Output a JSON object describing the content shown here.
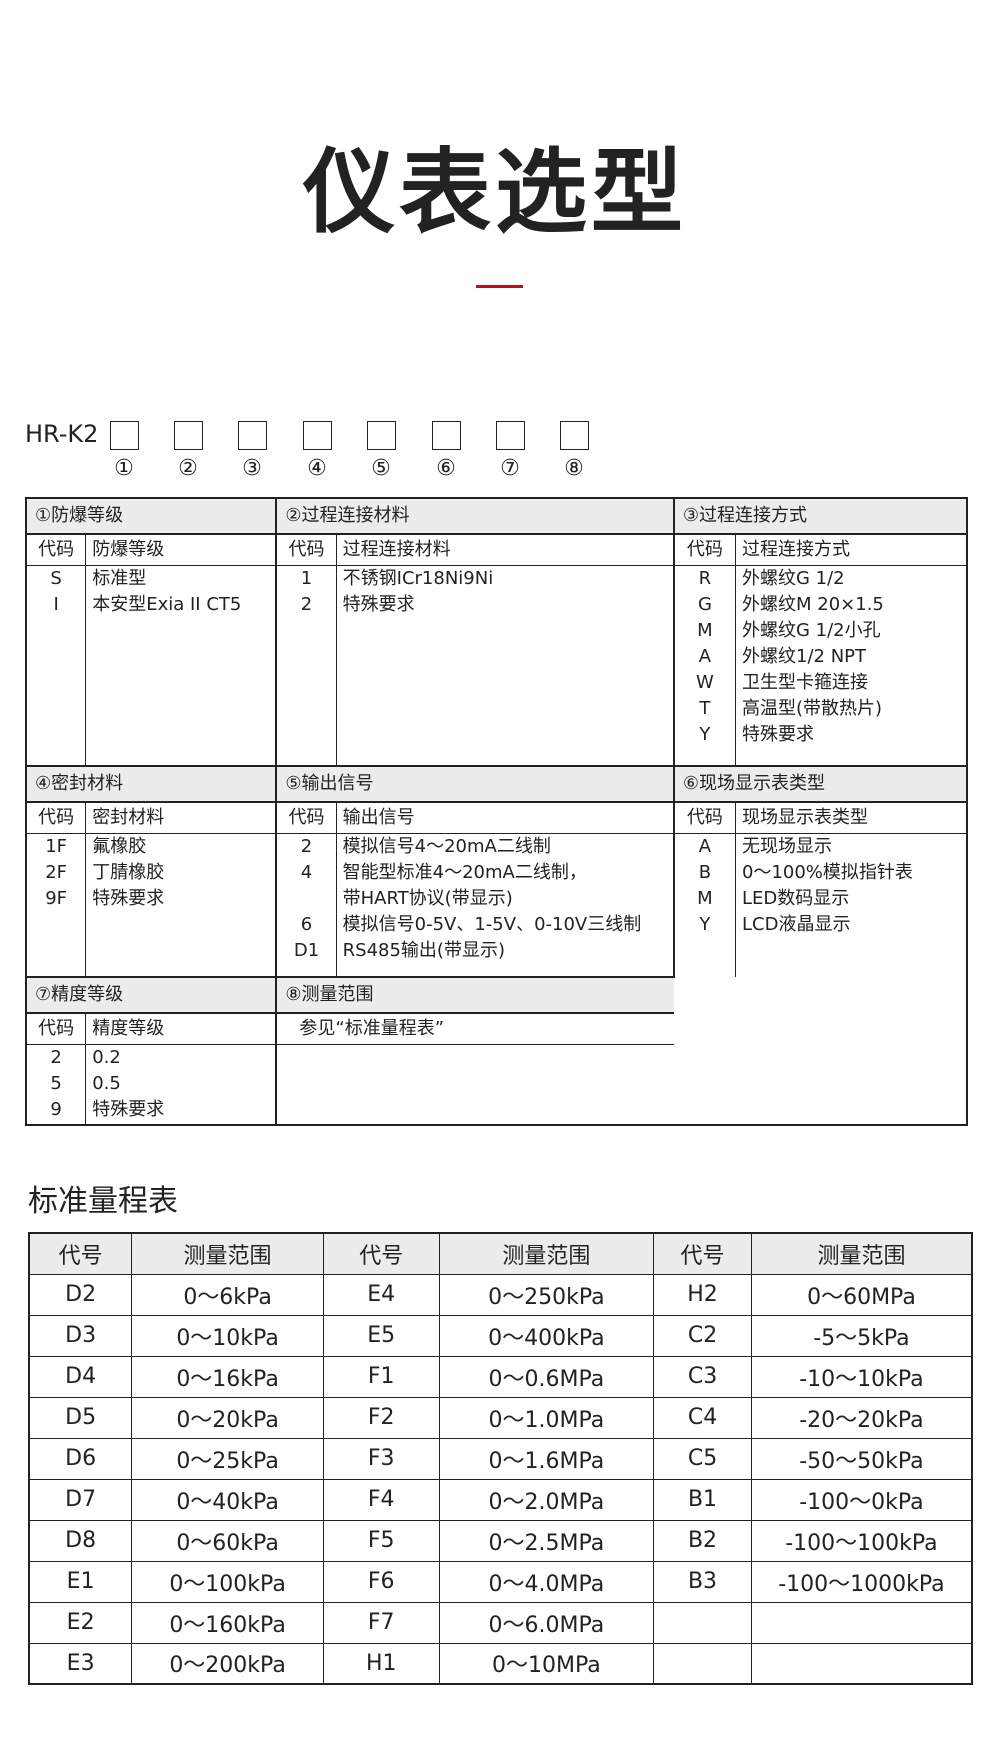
{
  "title": "仪表选型",
  "accent": "#b5121b",
  "model": {
    "prefix": "HR-K2",
    "slots": [
      "①",
      "②",
      "③",
      "④",
      "⑤",
      "⑥",
      "⑦",
      "⑧"
    ]
  },
  "spec": {
    "sections": [
      {
        "title": "①防爆等级",
        "code_header": "代码",
        "desc_header": "防爆等级",
        "rows": [
          [
            "S",
            "标准型"
          ],
          [
            "I",
            "本安型Exia II CT5"
          ]
        ]
      },
      {
        "title": "②过程连接材料",
        "code_header": "代码",
        "desc_header": "过程连接材料",
        "rows": [
          [
            "1",
            "不锈钢ICr18Ni9Ni"
          ],
          [
            "2",
            "特殊要求"
          ]
        ]
      },
      {
        "title": "③过程连接方式",
        "code_header": "代码",
        "desc_header": "过程连接方式",
        "rows": [
          [
            "R",
            "外螺纹G 1/2"
          ],
          [
            "G",
            "外螺纹M 20×1.5"
          ],
          [
            "M",
            "外螺纹G 1/2小孔"
          ],
          [
            "A",
            "外螺纹1/2 NPT"
          ],
          [
            "W",
            "卫生型卡箍连接"
          ],
          [
            "T",
            "高温型(带散热片)"
          ],
          [
            "Y",
            "特殊要求"
          ]
        ]
      },
      {
        "title": "④密封材料",
        "code_header": "代码",
        "desc_header": "密封材料",
        "rows": [
          [
            "1F",
            "氟橡胶"
          ],
          [
            "2F",
            "丁腈橡胶"
          ],
          [
            "9F",
            "特殊要求"
          ]
        ]
      },
      {
        "title": "⑤输出信号",
        "code_header": "代码",
        "desc_header": "输出信号",
        "rows": [
          [
            "2",
            "模拟信号4～20mA二线制"
          ],
          [
            "4",
            "智能型标准4～20mA二线制，"
          ],
          [
            "",
            "带HART协议(带显示)"
          ],
          [
            "6",
            "模拟信号0-5V、1-5V、0-10V三线制"
          ],
          [
            "D1",
            "RS485输出(带显示)"
          ]
        ]
      },
      {
        "title": "⑥现场显示表类型",
        "code_header": "代码",
        "desc_header": "现场显示表类型",
        "rows": [
          [
            "A",
            "无现场显示"
          ],
          [
            "B",
            "0～100%模拟指针表"
          ],
          [
            "M",
            "LED数码显示"
          ],
          [
            "Y",
            "LCD液晶显示"
          ]
        ]
      },
      {
        "title": "⑦精度等级",
        "code_header": "代码",
        "desc_header": "精度等级",
        "rows": [
          [
            "2",
            "0.2"
          ],
          [
            "5",
            "0.5"
          ],
          [
            "9",
            "特殊要求"
          ]
        ]
      },
      {
        "title": "⑧测量范围",
        "note": "参见“标准量程表”"
      }
    ]
  },
  "range_table": {
    "title": "标准量程表",
    "headers": [
      "代号",
      "测量范围",
      "代号",
      "测量范围",
      "代号",
      "测量范围"
    ],
    "rows": [
      [
        "D2",
        "0～6kPa",
        "E4",
        "0～250kPa",
        "H2",
        "0～60MPa"
      ],
      [
        "D3",
        "0～10kPa",
        "E5",
        "0～400kPa",
        "C2",
        "-5～5kPa"
      ],
      [
        "D4",
        "0～16kPa",
        "F1",
        "0～0.6MPa",
        "C3",
        "-10～10kPa"
      ],
      [
        "D5",
        "0～20kPa",
        "F2",
        "0～1.0MPa",
        "C4",
        "-20～20kPa"
      ],
      [
        "D6",
        "0～25kPa",
        "F3",
        "0～1.6MPa",
        "C5",
        "-50～50kPa"
      ],
      [
        "D7",
        "0～40kPa",
        "F4",
        "0～2.0MPa",
        "B1",
        "-100～0kPa"
      ],
      [
        "D8",
        "0～60kPa",
        "F5",
        "0～2.5MPa",
        "B2",
        "-100～100kPa"
      ],
      [
        "E1",
        "0～100kPa",
        "F6",
        "0～4.0MPa",
        "B3",
        "-100～1000kPa"
      ],
      [
        "E2",
        "0～160kPa",
        "F7",
        "0～6.0MPa",
        "",
        ""
      ],
      [
        "E3",
        "0～200kPa",
        "H1",
        "0～10MPa",
        "",
        ""
      ]
    ]
  }
}
